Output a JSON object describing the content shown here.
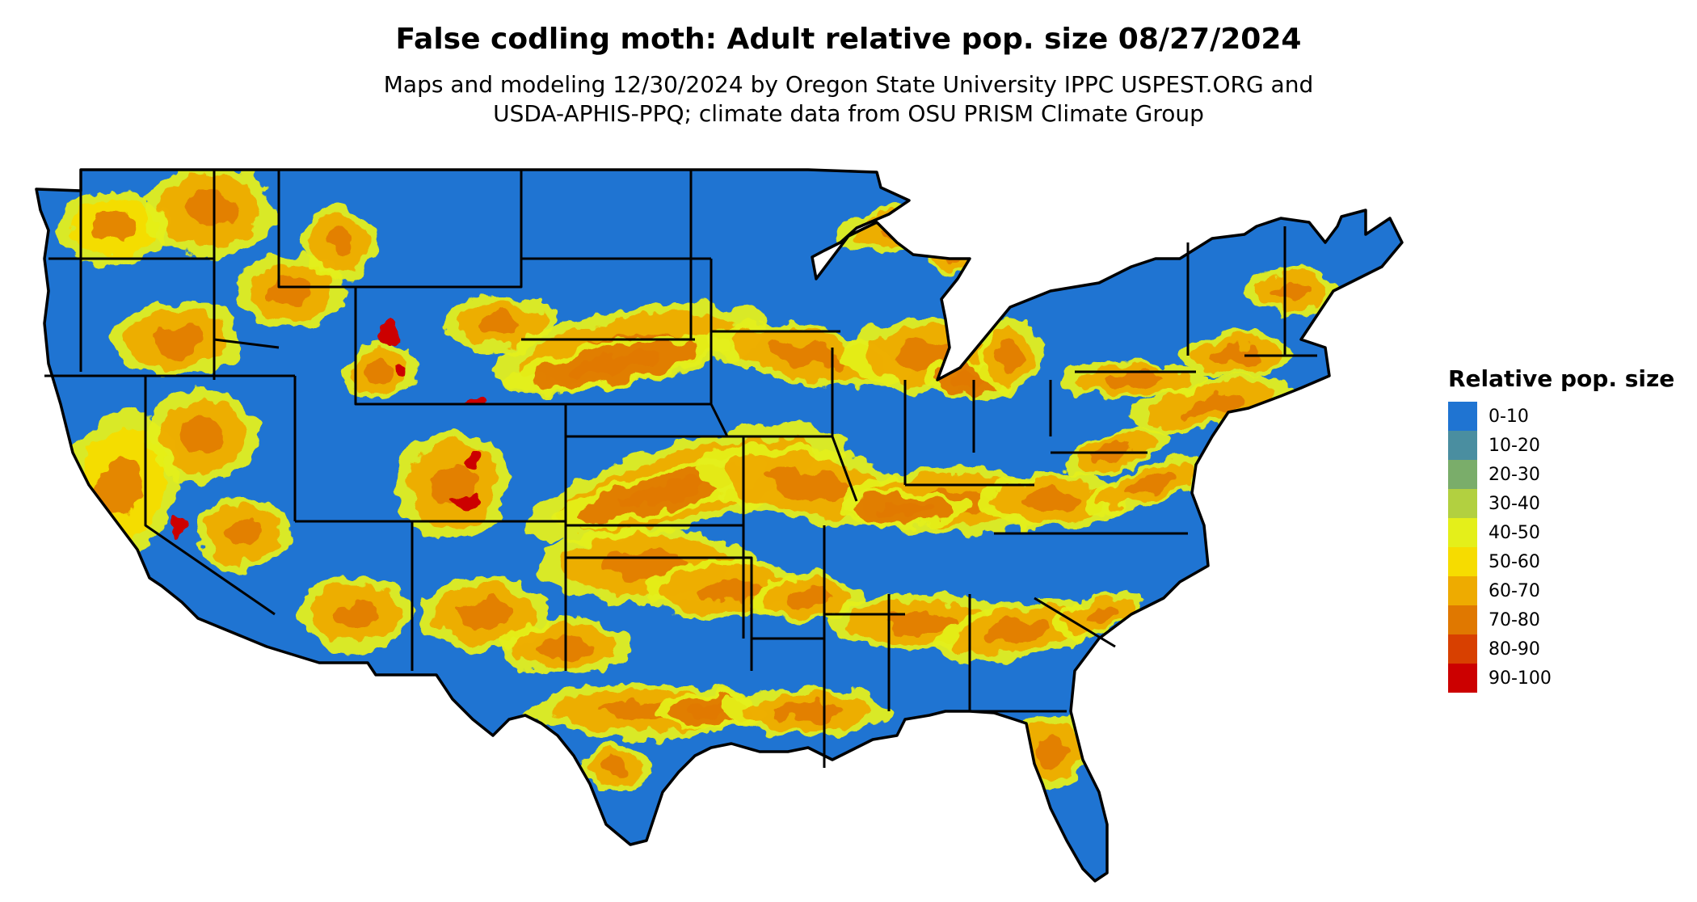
{
  "title": "False codling moth: Adult relative pop. size 08/27/2024",
  "subtitle_line1": "Maps and modeling 12/30/2024 by Oregon State University IPPC USPEST.ORG and",
  "subtitle_line2": "USDA-APHIS-PPQ; climate data from OSU PRISM Climate Group",
  "legend": {
    "title": "Relative pop. size",
    "items": [
      {
        "label": "0-10",
        "color": "#1f74d2"
      },
      {
        "label": "10-20",
        "color": "#4a8ea0"
      },
      {
        "label": "20-30",
        "color": "#7aad6a"
      },
      {
        "label": "30-40",
        "color": "#b2d040"
      },
      {
        "label": "40-50",
        "color": "#e4ef1a"
      },
      {
        "label": "50-60",
        "color": "#f6dc00"
      },
      {
        "label": "60-70",
        "color": "#eeab00"
      },
      {
        "label": "70-80",
        "color": "#e07800"
      },
      {
        "label": "80-90",
        "color": "#d84000"
      },
      {
        "label": "90-100",
        "color": "#cc0000"
      }
    ]
  },
  "map": {
    "base_color": "#1f74d2",
    "border_color": "#000000"
  }
}
